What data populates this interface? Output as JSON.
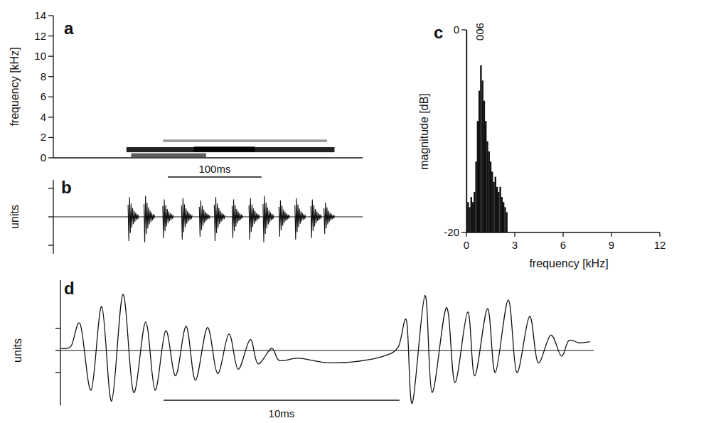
{
  "chart_data": [
    {
      "type": "spectrogram",
      "panel": "a",
      "ylabel": "frequency [kHz]",
      "xlim": [
        0,
        330
      ],
      "ylim": [
        0,
        14
      ],
      "yticks": [
        0,
        2,
        4,
        6,
        8,
        10,
        12,
        14
      ],
      "tick_labels": "y",
      "scale_bar": {
        "value": 100,
        "label": "100ms"
      },
      "segments": [
        {
          "start": 78,
          "end": 300,
          "low": 0.55,
          "high": 1.05,
          "level": 0.85
        },
        {
          "start": 117,
          "end": 292,
          "low": 1.55,
          "high": 1.8,
          "level": 0.35
        },
        {
          "start": 83,
          "end": 163,
          "low": 0.05,
          "high": 0.45,
          "level": 0.6
        },
        {
          "start": 150,
          "end": 215,
          "low": 0.6,
          "high": 1.1,
          "level": 1.0
        }
      ]
    },
    {
      "type": "oscillogram",
      "panel": "b",
      "ylabel": "units",
      "xlim": [
        0,
        330
      ],
      "ylim": [
        -1.3,
        1.3
      ],
      "yticks": [
        -1,
        0,
        1
      ],
      "tick_labels": false,
      "x": [
        82,
        99,
        119,
        139,
        158,
        174,
        193,
        211,
        226,
        243,
        260,
        277,
        291
      ],
      "values": [
        0.85,
        0.9,
        0.75,
        0.8,
        0.7,
        0.85,
        0.75,
        0.8,
        0.9,
        0.7,
        0.8,
        0.75,
        0.6
      ]
    },
    {
      "type": "spectrum",
      "panel": "c",
      "xlabel": "frequency [kHz]",
      "ylabel": "magnitude [dB]",
      "xlim": [
        0,
        12
      ],
      "xticks": [
        0,
        3,
        6,
        9,
        12
      ],
      "ylim": [
        -20,
        0
      ],
      "yticks": [
        -20,
        0
      ],
      "x": [
        0,
        0.1,
        0.2,
        0.3,
        0.4,
        0.5,
        0.6,
        0.7,
        0.8,
        0.9,
        1.0,
        1.1,
        1.2,
        1.3,
        1.4,
        1.5,
        1.6,
        1.7,
        1.8,
        1.9,
        2.0,
        2.1,
        2.2,
        2.3,
        2.4,
        2.5
      ],
      "values": [
        0,
        -17,
        -17.5,
        -16.5,
        -17,
        -16,
        -13,
        -9,
        -6,
        -3.5,
        -5,
        -7,
        -9,
        -11,
        -12,
        -13,
        -14,
        -15,
        -14.5,
        -15.5,
        -16,
        -15.5,
        -16.5,
        -17,
        -17.5,
        -18
      ],
      "annotations": [
        {
          "x": 0.9,
          "text": "900"
        }
      ]
    },
    {
      "type": "line",
      "panel": "d",
      "ylabel": "units",
      "xlim": [
        0,
        22.6
      ],
      "ylim": [
        -2.5,
        3.2
      ],
      "yticks": [
        -1,
        0,
        1
      ],
      "tick_labels": false,
      "scale_bar": {
        "value": 10,
        "label": "10ms"
      },
      "x": [
        0,
        0.45,
        0.84,
        1.3,
        1.75,
        2.17,
        2.65,
        3.1,
        3.61,
        4.01,
        4.46,
        4.88,
        5.33,
        5.72,
        6.23,
        6.66,
        7.14,
        7.53,
        8.04,
        8.37,
        8.95,
        9.28,
        10.09,
        11.3,
        12.5,
        13.7,
        14.31,
        14.67,
        14.91,
        15.45,
        15.75,
        16.36,
        16.72,
        17.26,
        17.56,
        18.1,
        18.43,
        18.98,
        19.34,
        19.88,
        20.24,
        20.78,
        21.23,
        21.54,
        21.99,
        22.44
      ],
      "values": [
        0.1,
        0.2,
        1.2,
        -1.8,
        2.0,
        -2.3,
        2.55,
        -1.9,
        1.3,
        -1.8,
        0.9,
        -1.15,
        1.1,
        -1.35,
        1.05,
        -1.05,
        0.75,
        -0.85,
        0.5,
        -0.6,
        0.1,
        -0.45,
        -0.35,
        -0.55,
        -0.5,
        -0.25,
        0.15,
        1.35,
        -2.4,
        2.5,
        -1.9,
        1.95,
        -1.45,
        1.75,
        -1.15,
        1.9,
        -1.0,
        2.3,
        -1.0,
        1.55,
        -0.55,
        0.7,
        -0.25,
        0.45,
        0.35,
        0.4
      ]
    }
  ]
}
